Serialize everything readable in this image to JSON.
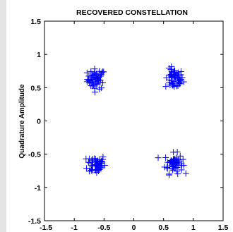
{
  "chart_data": {
    "type": "scatter",
    "title": "RECOVERED CONSTELLATION",
    "xlabel": "",
    "ylabel": "Quadrature Amplitude",
    "xlim": [
      -1.5,
      1.5
    ],
    "ylim": [
      -1.5,
      1.5
    ],
    "xticks": [
      -1.5,
      -1,
      -0.5,
      0,
      0.5,
      1,
      1.5
    ],
    "xtick_labels": [
      "-1.5",
      "-1",
      "-0.5",
      "0",
      "0.5",
      "1",
      "1.5"
    ],
    "yticks": [
      -1.5,
      -1,
      -0.5,
      0,
      0.5,
      1,
      1.5
    ],
    "ytick_labels": [
      "-1.5",
      "-1",
      "-0.5",
      "0",
      "0.5",
      "1",
      "1.5"
    ],
    "grid": false,
    "legend": "none",
    "marker": "plus",
    "marker_color": "#0000ff",
    "clusters": [
      {
        "center": [
          -0.63,
          0.63
        ],
        "spread": 0.075,
        "count": 55
      },
      {
        "center": [
          0.68,
          0.63
        ],
        "spread": 0.075,
        "count": 55
      },
      {
        "center": [
          -0.63,
          -0.65
        ],
        "spread": 0.075,
        "count": 55
      },
      {
        "center": [
          0.67,
          -0.64
        ],
        "spread": 0.075,
        "count": 55
      }
    ]
  }
}
